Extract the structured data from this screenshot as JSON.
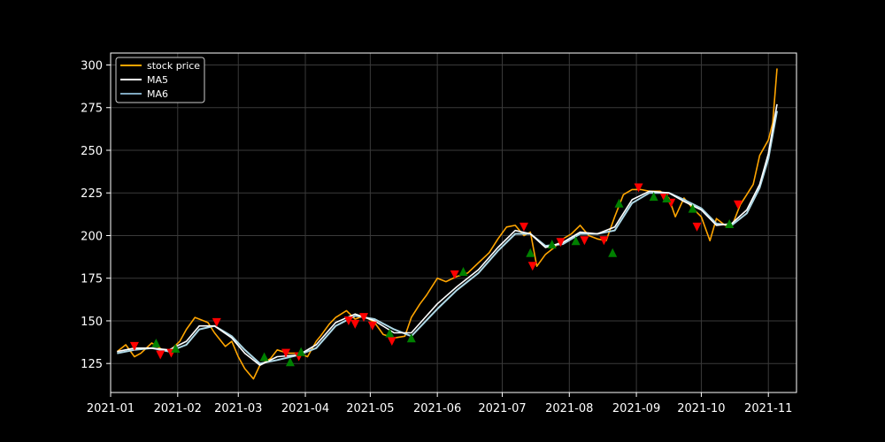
{
  "chart_data": {
    "type": "line",
    "title": "",
    "xlabel": "",
    "ylabel": "",
    "x_axis": {
      "range": [
        "2021-01-01",
        "2021-11-14"
      ],
      "ticks": [
        "2021-01",
        "2021-02",
        "2021-03",
        "2021-04",
        "2021-05",
        "2021-06",
        "2021-07",
        "2021-08",
        "2021-09",
        "2021-10",
        "2021-11"
      ],
      "tick_dates": [
        "2021-01-01",
        "2021-02-01",
        "2021-03-01",
        "2021-04-01",
        "2021-05-01",
        "2021-06-01",
        "2021-07-01",
        "2021-08-01",
        "2021-09-01",
        "2021-10-01",
        "2021-11-01"
      ]
    },
    "y_axis": {
      "range": [
        108,
        307
      ],
      "ticks": [
        125,
        150,
        175,
        200,
        225,
        250,
        275,
        300
      ]
    },
    "grid": true,
    "legend": {
      "placement": "top-left",
      "entries": [
        "stock price",
        "MA5",
        "MA6"
      ]
    },
    "colors": {
      "price": "#FFA500",
      "ma5": "#FFFFFF",
      "ma6": "#ADD8E6",
      "buy": "#008000",
      "sell": "#FF0000"
    },
    "series": [
      {
        "name": "stock price",
        "dates": [
          "2021-01-04",
          "2021-01-08",
          "2021-01-12",
          "2021-01-15",
          "2021-01-20",
          "2021-01-25",
          "2021-01-28",
          "2021-02-02",
          "2021-02-05",
          "2021-02-09",
          "2021-02-11",
          "2021-02-15",
          "2021-02-18",
          "2021-02-23",
          "2021-02-26",
          "2021-03-01",
          "2021-03-04",
          "2021-03-08",
          "2021-03-11",
          "2021-03-16",
          "2021-03-19",
          "2021-03-24",
          "2021-03-29",
          "2021-04-02",
          "2021-04-06",
          "2021-04-08",
          "2021-04-12",
          "2021-04-15",
          "2021-04-20",
          "2021-04-24",
          "2021-04-28",
          "2021-05-03",
          "2021-05-07",
          "2021-05-12",
          "2021-05-17",
          "2021-05-20",
          "2021-05-24",
          "2021-05-27",
          "2021-06-01",
          "2021-06-05",
          "2021-06-10",
          "2021-06-15",
          "2021-06-20",
          "2021-06-25",
          "2021-06-29",
          "2021-07-03",
          "2021-07-07",
          "2021-07-11",
          "2021-07-14",
          "2021-07-17",
          "2021-07-21",
          "2021-07-25",
          "2021-07-29",
          "2021-08-02",
          "2021-08-06",
          "2021-08-10",
          "2021-08-14",
          "2021-08-18",
          "2021-08-22",
          "2021-08-26",
          "2021-08-30",
          "2021-09-03",
          "2021-09-07",
          "2021-09-12",
          "2021-09-16",
          "2021-09-19",
          "2021-09-23",
          "2021-09-27",
          "2021-10-01",
          "2021-10-05",
          "2021-10-08",
          "2021-10-12",
          "2021-10-15",
          "2021-10-19",
          "2021-10-22",
          "2021-10-25",
          "2021-10-28",
          "2021-11-01",
          "2021-11-03",
          "2021-11-05"
        ],
        "values": [
          132,
          136,
          129,
          131,
          137,
          133,
          132,
          138,
          145,
          152,
          151,
          149,
          143,
          135,
          138,
          129,
          122,
          116,
          124,
          128,
          133,
          131,
          131,
          129,
          138,
          141,
          148,
          152,
          156,
          151,
          153,
          149,
          142,
          140,
          141,
          152,
          160,
          165,
          175,
          173,
          176,
          178,
          184,
          190,
          198,
          205,
          206,
          200,
          202,
          182,
          189,
          193,
          198,
          201,
          206,
          200,
          198,
          197,
          211,
          224,
          227,
          227,
          226,
          226,
          222,
          211,
          222,
          216,
          211,
          197,
          210,
          206,
          205,
          218,
          224,
          230,
          247,
          256,
          266,
          298
        ]
      },
      {
        "name": "MA5",
        "dates": [
          "2021-01-04",
          "2021-01-12",
          "2021-01-20",
          "2021-01-28",
          "2021-02-05",
          "2021-02-11",
          "2021-02-18",
          "2021-02-26",
          "2021-03-04",
          "2021-03-11",
          "2021-03-19",
          "2021-03-29",
          "2021-04-06",
          "2021-04-15",
          "2021-04-24",
          "2021-05-03",
          "2021-05-12",
          "2021-05-20",
          "2021-06-01",
          "2021-06-10",
          "2021-06-20",
          "2021-06-29",
          "2021-07-07",
          "2021-07-14",
          "2021-07-21",
          "2021-07-29",
          "2021-08-06",
          "2021-08-14",
          "2021-08-22",
          "2021-08-30",
          "2021-09-07",
          "2021-09-16",
          "2021-09-23",
          "2021-10-01",
          "2021-10-08",
          "2021-10-15",
          "2021-10-22",
          "2021-10-28",
          "2021-11-01",
          "2021-11-05"
        ],
        "values": [
          132,
          134,
          134,
          133,
          138,
          147,
          147,
          140,
          131,
          124,
          129,
          130,
          136,
          149,
          154,
          150,
          143,
          143,
          160,
          170,
          180,
          193,
          203,
          201,
          193,
          196,
          202,
          201,
          205,
          221,
          226,
          225,
          220,
          215,
          206,
          207,
          215,
          230,
          248,
          277
        ]
      },
      {
        "name": "MA6",
        "dates": [
          "2021-01-04",
          "2021-01-12",
          "2021-01-20",
          "2021-01-28",
          "2021-02-05",
          "2021-02-11",
          "2021-02-18",
          "2021-02-26",
          "2021-03-04",
          "2021-03-11",
          "2021-03-19",
          "2021-03-29",
          "2021-04-06",
          "2021-04-15",
          "2021-04-24",
          "2021-05-03",
          "2021-05-12",
          "2021-05-20",
          "2021-06-01",
          "2021-06-10",
          "2021-06-20",
          "2021-06-29",
          "2021-07-07",
          "2021-07-14",
          "2021-07-21",
          "2021-07-29",
          "2021-08-06",
          "2021-08-14",
          "2021-08-22",
          "2021-08-30",
          "2021-09-07",
          "2021-09-16",
          "2021-09-23",
          "2021-10-01",
          "2021-10-08",
          "2021-10-15",
          "2021-10-22",
          "2021-10-28",
          "2021-11-01",
          "2021-11-05"
        ],
        "values": [
          131,
          133,
          134,
          132,
          136,
          145,
          147,
          141,
          133,
          125,
          127,
          130,
          134,
          147,
          153,
          151,
          145,
          141,
          157,
          168,
          178,
          191,
          201,
          201,
          194,
          195,
          201,
          201,
          203,
          219,
          225,
          225,
          221,
          216,
          207,
          206,
          213,
          228,
          245,
          273
        ]
      }
    ],
    "markers": {
      "sell": [
        [
          "2021-01-12",
          135
        ],
        [
          "2021-01-24",
          130
        ],
        [
          "2021-01-29",
          131
        ],
        [
          "2021-02-19",
          149
        ],
        [
          "2021-03-23",
          131
        ],
        [
          "2021-03-29",
          129
        ],
        [
          "2021-04-21",
          150
        ],
        [
          "2021-04-24",
          148
        ],
        [
          "2021-04-28",
          152
        ],
        [
          "2021-05-02",
          147
        ],
        [
          "2021-05-11",
          138
        ],
        [
          "2021-06-09",
          177
        ],
        [
          "2021-07-11",
          205
        ],
        [
          "2021-07-15",
          182
        ],
        [
          "2021-07-28",
          196
        ],
        [
          "2021-08-08",
          197
        ],
        [
          "2021-08-17",
          197
        ],
        [
          "2021-09-02",
          228
        ],
        [
          "2021-09-14",
          222
        ],
        [
          "2021-09-17",
          219
        ],
        [
          "2021-09-29",
          205
        ],
        [
          "2021-10-18",
          218
        ]
      ],
      "buy": [
        [
          "2021-01-22",
          137
        ],
        [
          "2021-01-31",
          134
        ],
        [
          "2021-03-13",
          129
        ],
        [
          "2021-03-25",
          126
        ],
        [
          "2021-03-30",
          132
        ],
        [
          "2021-05-10",
          143
        ],
        [
          "2021-05-20",
          140
        ],
        [
          "2021-06-13",
          179
        ],
        [
          "2021-07-14",
          190
        ],
        [
          "2021-07-24",
          195
        ],
        [
          "2021-08-04",
          197
        ],
        [
          "2021-08-21",
          190
        ],
        [
          "2021-08-24",
          219
        ],
        [
          "2021-09-09",
          223
        ],
        [
          "2021-09-15",
          222
        ],
        [
          "2021-09-27",
          216
        ],
        [
          "2021-10-14",
          207
        ]
      ]
    }
  }
}
